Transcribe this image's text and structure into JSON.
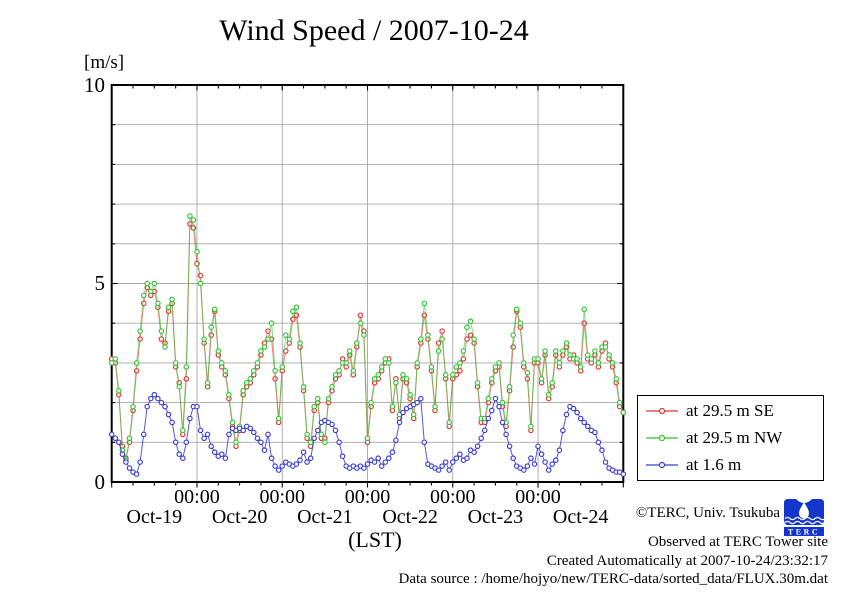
{
  "title": "Wind Speed / 2007-10-24",
  "y_axis": {
    "unit_label": "[m/s]",
    "tick_labels": [
      "10",
      "5",
      "0"
    ]
  },
  "x_axis": {
    "time_tick_label": "00:00",
    "date_labels": [
      "Oct-19",
      "Oct-20",
      "Oct-21",
      "Oct-22",
      "Oct-23",
      "Oct-24"
    ],
    "axis_label": "(LST)"
  },
  "footer": {
    "copyright": "©TERC, Univ. Tsukuba",
    "observed": "Observed at TERC Tower site",
    "created": "Created Automatically at 2007-10-24/23:32:17",
    "source": "Data source : /home/hojyo/new/TERC-data/sorted_data/FLUX.30m.dat",
    "logo_text": "TERC",
    "logo_color": "#1536cc"
  },
  "chart_data": {
    "type": "line",
    "title": "Wind Speed / 2007-10-24",
    "xlabel": "(LST)",
    "ylabel": "[m/s]",
    "ylim": [
      0,
      10
    ],
    "grid": true,
    "legend_position": "outside-right-bottom",
    "x_start": "2007-10-19 00:00",
    "x_end": "2007-10-25 00:00",
    "x_step_hours": 1,
    "x_total_hours": 144,
    "x_day_tick_label": "00:00",
    "series": [
      {
        "name": "at 29.5 m SE",
        "color": "#e03333",
        "values": [
          3.1,
          3.0,
          2.2,
          0.9,
          0.6,
          1.0,
          1.8,
          2.8,
          3.6,
          4.5,
          4.9,
          4.7,
          4.8,
          4.4,
          3.6,
          3.5,
          4.3,
          4.5,
          2.9,
          2.5,
          1.2,
          2.6,
          6.5,
          6.4,
          5.5,
          5.2,
          3.5,
          2.4,
          3.7,
          4.3,
          3.2,
          2.9,
          2.7,
          2.1,
          1.4,
          0.9,
          1.3,
          2.2,
          2.4,
          2.5,
          2.7,
          2.9,
          3.2,
          3.5,
          3.8,
          3.6,
          2.6,
          1.5,
          2.8,
          3.3,
          3.5,
          4.1,
          4.2,
          3.4,
          2.3,
          1.1,
          0.9,
          1.8,
          2.0,
          1.1,
          1.1,
          2.0,
          2.3,
          2.6,
          2.7,
          3.1,
          2.9,
          3.2,
          2.7,
          3.4,
          4.2,
          3.8,
          1.0,
          1.9,
          2.5,
          2.6,
          2.8,
          3.0,
          3.1,
          1.8,
          2.6,
          1.6,
          2.6,
          2.5,
          2.1,
          1.6,
          2.9,
          3.5,
          4.2,
          3.6,
          2.8,
          1.8,
          3.5,
          3.8,
          2.6,
          1.4,
          2.6,
          2.7,
          2.8,
          3.1,
          3.6,
          3.7,
          3.5,
          2.4,
          1.5,
          1.5,
          2.0,
          2.5,
          2.8,
          2.9,
          1.9,
          1.4,
          2.3,
          3.4,
          4.3,
          3.9,
          2.9,
          2.6,
          1.3,
          3.0,
          3.0,
          2.5,
          3.2,
          2.1,
          2.4,
          3.2,
          2.9,
          3.2,
          3.4,
          3.1,
          3.2,
          3.0,
          2.8,
          4.0,
          3.1,
          3.0,
          3.2,
          2.9,
          3.3,
          3.5,
          3.1,
          2.9,
          2.5,
          1.9,
          1.75
        ]
      },
      {
        "name": "at 29.5 m NW",
        "color": "#2fc42f",
        "values": [
          3.0,
          3.1,
          2.3,
          0.8,
          0.55,
          1.1,
          1.9,
          3.0,
          3.8,
          4.7,
          5.0,
          4.8,
          5.0,
          4.5,
          3.8,
          3.4,
          4.4,
          4.6,
          3.0,
          2.4,
          1.3,
          2.9,
          6.7,
          6.6,
          5.8,
          5.0,
          3.6,
          2.5,
          3.9,
          4.35,
          3.3,
          3.0,
          2.8,
          2.2,
          1.5,
          1.0,
          1.4,
          2.3,
          2.5,
          2.6,
          2.8,
          3.0,
          3.3,
          3.4,
          3.6,
          4.0,
          2.8,
          1.6,
          2.9,
          3.7,
          3.6,
          4.3,
          4.4,
          3.5,
          2.4,
          1.2,
          1.0,
          1.9,
          2.1,
          1.2,
          1.0,
          2.1,
          2.4,
          2.7,
          2.8,
          3.0,
          3.0,
          3.3,
          2.8,
          3.5,
          4.0,
          3.7,
          1.1,
          2.0,
          2.6,
          2.7,
          2.9,
          3.1,
          3.0,
          1.9,
          2.5,
          1.7,
          2.7,
          2.6,
          2.2,
          1.7,
          3.0,
          3.6,
          4.5,
          3.7,
          2.9,
          1.9,
          3.3,
          3.6,
          2.7,
          1.5,
          2.7,
          2.9,
          3.0,
          3.3,
          3.9,
          4.05,
          3.6,
          2.5,
          1.6,
          1.6,
          2.1,
          2.6,
          2.9,
          3.0,
          2.0,
          1.5,
          2.4,
          3.7,
          4.35,
          4.0,
          3.0,
          2.75,
          1.4,
          3.1,
          3.1,
          2.6,
          3.3,
          2.2,
          2.5,
          3.3,
          3.0,
          3.3,
          3.5,
          3.2,
          3.1,
          3.1,
          2.9,
          4.35,
          3.2,
          3.1,
          3.3,
          3.0,
          3.4,
          3.4,
          3.2,
          3.0,
          2.6,
          2.0,
          1.75
        ]
      },
      {
        "name": "at 1.6 m",
        "color": "#3a3ad8",
        "values": [
          1.2,
          1.1,
          1.0,
          0.7,
          0.5,
          0.35,
          0.25,
          0.2,
          0.5,
          1.2,
          1.9,
          2.1,
          2.2,
          2.1,
          2.0,
          1.9,
          1.7,
          1.5,
          1.0,
          0.7,
          0.6,
          1.0,
          1.6,
          1.9,
          1.9,
          1.3,
          1.1,
          1.2,
          0.9,
          0.75,
          0.65,
          0.7,
          0.6,
          1.2,
          1.35,
          1.3,
          1.35,
          1.3,
          1.4,
          1.35,
          1.25,
          1.1,
          1.0,
          0.8,
          1.2,
          0.6,
          0.4,
          0.3,
          0.4,
          0.5,
          0.45,
          0.4,
          0.45,
          0.55,
          0.75,
          0.5,
          0.6,
          1.1,
          1.3,
          1.5,
          1.55,
          1.5,
          1.45,
          1.3,
          1.0,
          0.65,
          0.4,
          0.35,
          0.4,
          0.35,
          0.4,
          0.35,
          0.45,
          0.55,
          0.5,
          0.6,
          0.4,
          0.5,
          0.6,
          0.75,
          1.05,
          1.5,
          1.75,
          1.85,
          1.9,
          1.95,
          2.0,
          2.1,
          1.0,
          0.45,
          0.4,
          0.35,
          0.3,
          0.4,
          0.5,
          0.3,
          0.5,
          0.6,
          0.7,
          0.55,
          0.6,
          0.8,
          0.75,
          0.9,
          1.1,
          1.3,
          1.6,
          1.8,
          2.1,
          1.9,
          1.5,
          1.2,
          0.9,
          0.6,
          0.4,
          0.35,
          0.3,
          0.4,
          0.6,
          0.45,
          0.9,
          0.7,
          0.5,
          0.3,
          0.45,
          0.55,
          0.8,
          1.3,
          1.7,
          1.9,
          1.85,
          1.75,
          1.6,
          1.5,
          1.4,
          1.3,
          1.25,
          1.0,
          0.8,
          0.5,
          0.35,
          0.3,
          0.25,
          0.25,
          0.2
        ]
      }
    ]
  }
}
